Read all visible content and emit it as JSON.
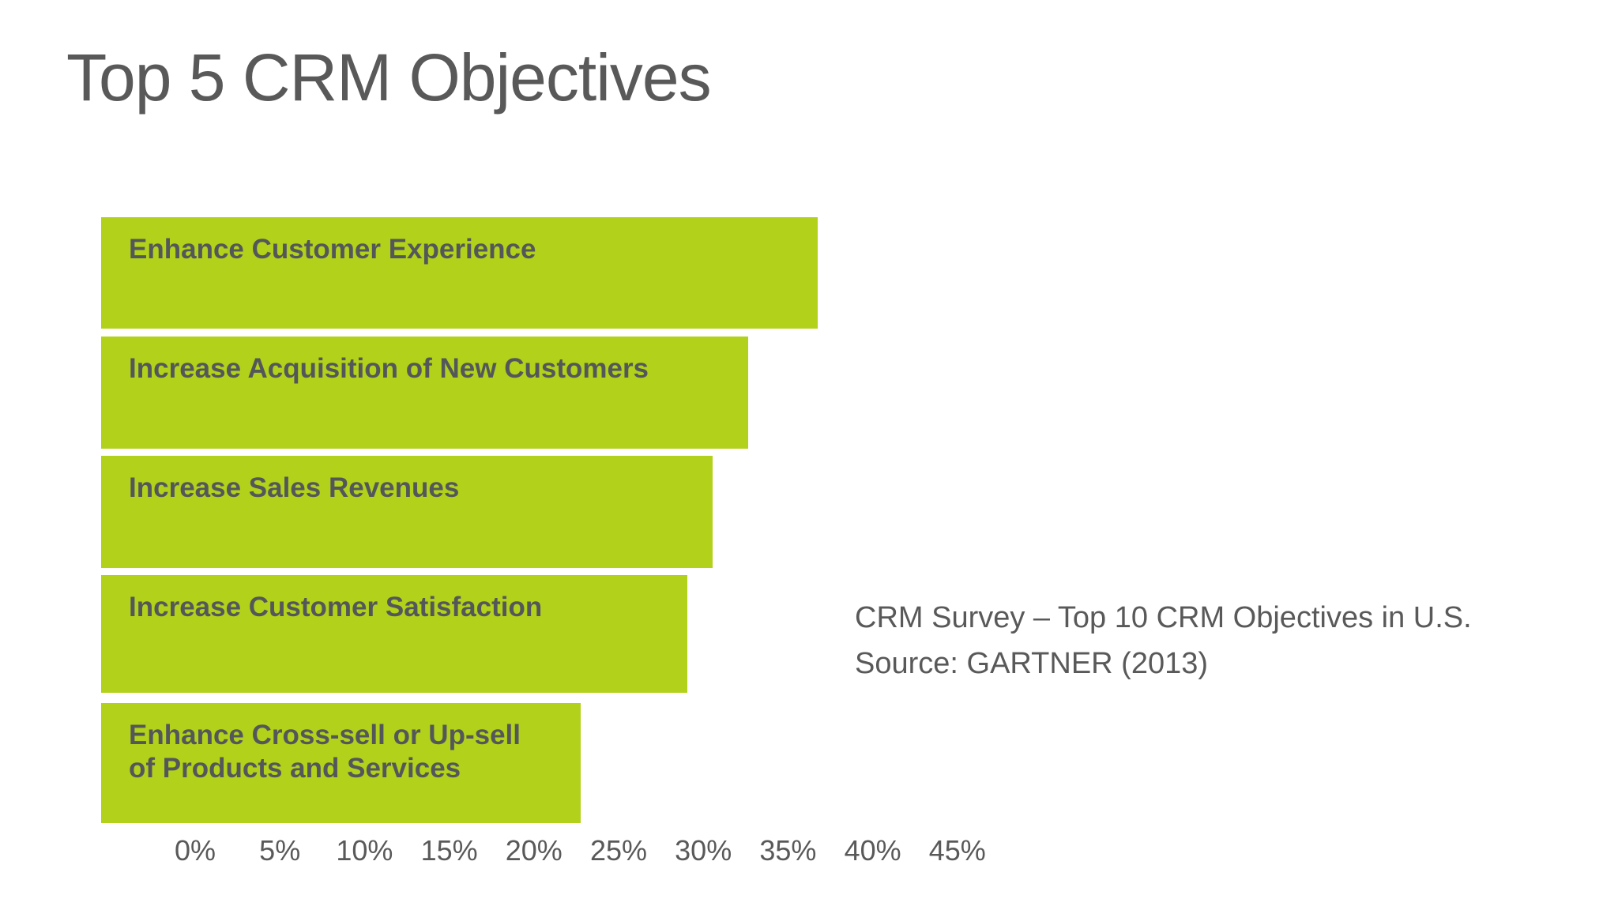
{
  "title": "Top 5 CRM Objectives",
  "annotation": {
    "line1": "CRM Survey – Top 10 CRM Objectives in U.S.",
    "line2": "Source: GARTNER (2013)"
  },
  "colors": {
    "bar_fill": "#b1d11b",
    "title_text": "#595959",
    "bar_label_text": "#54575a",
    "axis_text": "#595959",
    "background": "#ffffff"
  },
  "chart_data": {
    "type": "bar",
    "orientation": "horizontal",
    "title": "Top 5 CRM Objectives",
    "categories": [
      "Enhance Customer Experience",
      "Increase Acquisition of New Customers",
      "Increase Sales Revenues",
      "Increase Customer Satisfaction",
      "Enhance Cross-sell or Up-sell of Products and Services"
    ],
    "category_label_lines": [
      [
        "Enhance Customer Experience"
      ],
      [
        "Increase Acquisition of New Customers"
      ],
      [
        "Increase Sales Revenues"
      ],
      [
        "Increase Customer Satisfaction"
      ],
      [
        "Enhance Cross-sell or Up-sell",
        "of Products and Services"
      ]
    ],
    "values": [
      42.3,
      38.2,
      36.1,
      34.6,
      28.3
    ],
    "unit": "%",
    "x_tick_labels": [
      "0%",
      "5%",
      "10%",
      "15%",
      "20%",
      "25%",
      "30%",
      "35%",
      "40%",
      "45%"
    ],
    "x_axis_range": [
      0,
      45
    ],
    "grid": false,
    "value_labels_shown": false,
    "legend": "none",
    "source_note": "CRM Survey – Top 10 CRM Objectives in U.S. Source: GARTNER (2013)"
  }
}
